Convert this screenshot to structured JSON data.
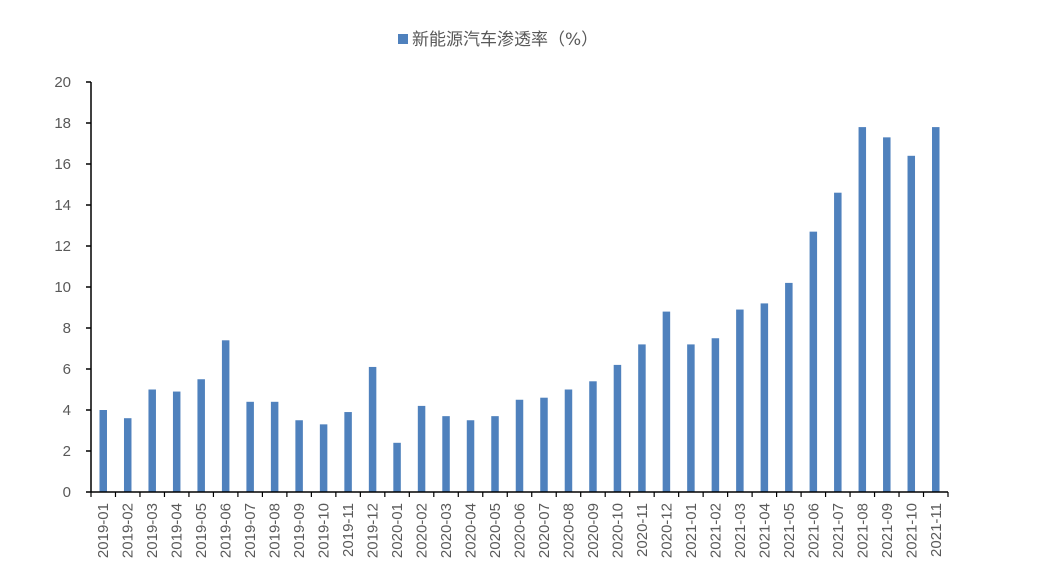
{
  "chart_data": {
    "type": "bar",
    "legend": [
      {
        "name": "新能源汽车渗透率（%）",
        "color": "#4F81BD"
      }
    ],
    "legend_position": "top-center",
    "ylim": [
      0,
      20
    ],
    "yticks": [
      0,
      2,
      4,
      6,
      8,
      10,
      12,
      14,
      16,
      18,
      20
    ],
    "grid": false,
    "categories": [
      "2019-01",
      "2019-02",
      "2019-03",
      "2019-04",
      "2019-05",
      "2019-06",
      "2019-07",
      "2019-08",
      "2019-09",
      "2019-10",
      "2019-11",
      "2019-12",
      "2020-01",
      "2020-02",
      "2020-03",
      "2020-04",
      "2020-05",
      "2020-06",
      "2020-07",
      "2020-08",
      "2020-09",
      "2020-10",
      "2020-11",
      "2020-12",
      "2021-01",
      "2021-02",
      "2021-03",
      "2021-04",
      "2021-05",
      "2021-06",
      "2021-07",
      "2021-08",
      "2021-09",
      "2021-10",
      "2021-11"
    ],
    "series": [
      {
        "name": "新能源汽车渗透率（%）",
        "color": "#4F81BD",
        "values": [
          4.0,
          3.6,
          5.0,
          4.9,
          5.5,
          7.4,
          4.4,
          4.4,
          3.5,
          3.3,
          3.9,
          6.1,
          2.4,
          4.2,
          3.7,
          3.5,
          3.7,
          4.5,
          4.6,
          5.0,
          5.4,
          6.2,
          7.2,
          8.8,
          7.2,
          7.5,
          8.9,
          9.2,
          10.2,
          12.7,
          14.6,
          17.8,
          17.3,
          16.4,
          17.8
        ]
      }
    ]
  }
}
